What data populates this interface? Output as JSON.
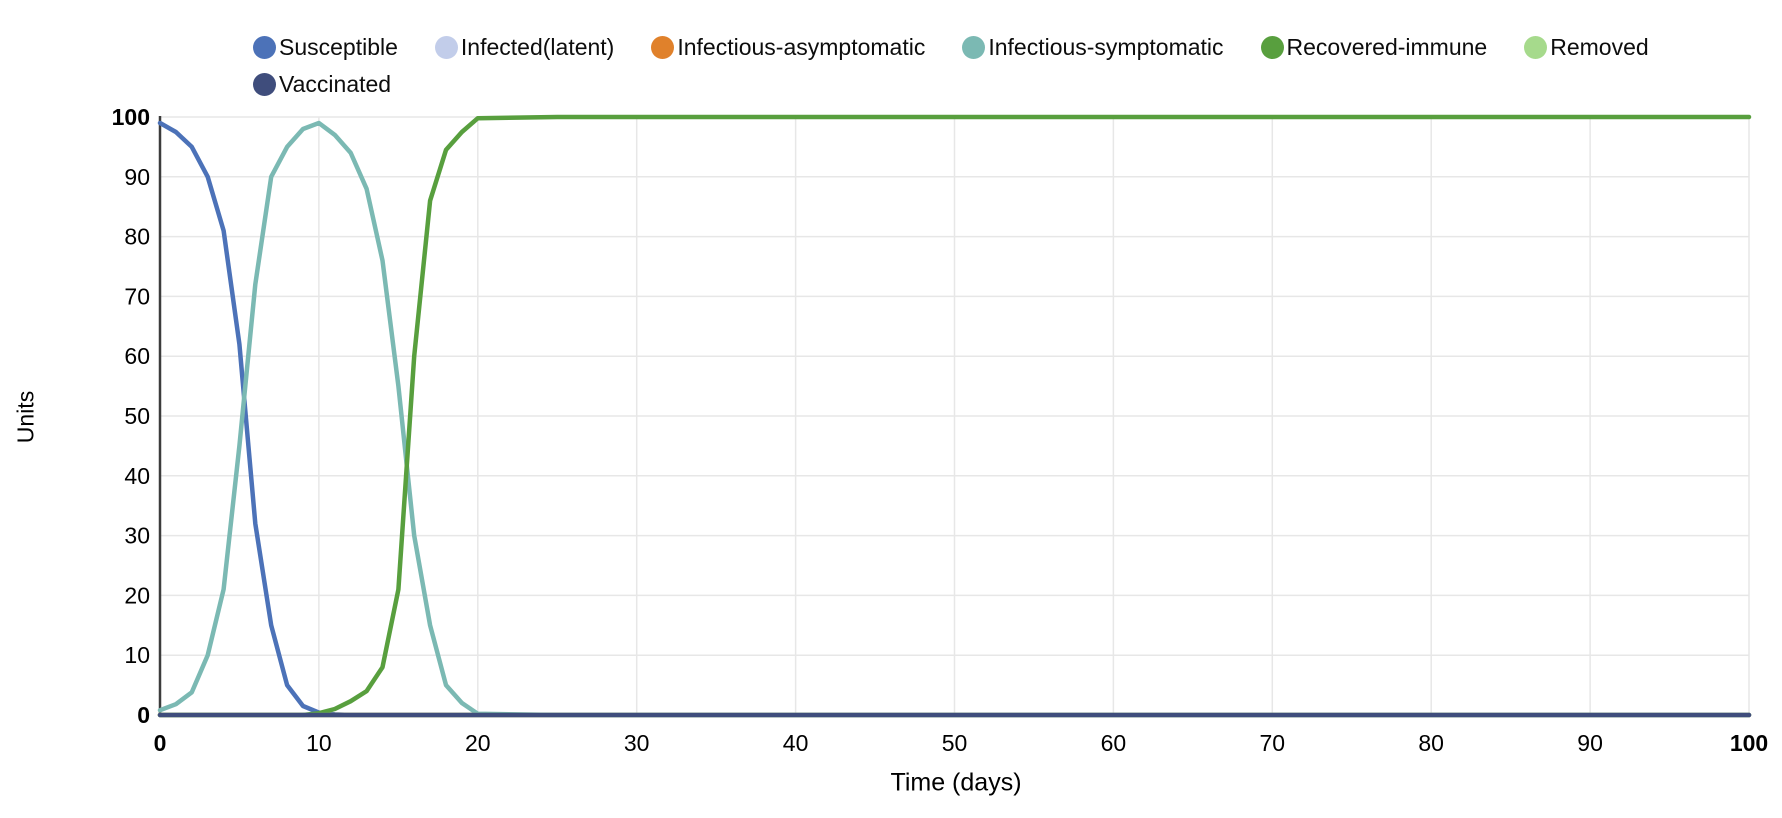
{
  "chart_data": {
    "type": "line",
    "title": "",
    "xlabel": "Time (days)",
    "ylabel": "Units",
    "xlim": [
      0,
      100
    ],
    "ylim": [
      0,
      100
    ],
    "x_ticks": [
      0,
      10,
      20,
      30,
      40,
      50,
      60,
      70,
      80,
      90,
      100
    ],
    "y_ticks": [
      0,
      10,
      20,
      30,
      40,
      50,
      60,
      70,
      80,
      90,
      100
    ],
    "grid": true,
    "legend_position": "top",
    "x": [
      0,
      1,
      2,
      3,
      4,
      5,
      6,
      7,
      8,
      9,
      10,
      11,
      12,
      13,
      14,
      15,
      16,
      17,
      18,
      19,
      20,
      25,
      30,
      40,
      50,
      60,
      70,
      80,
      90,
      100
    ],
    "series": [
      {
        "name": "Susceptible",
        "color": "#4C72B8",
        "values": [
          99,
          97.5,
          95,
          90,
          81,
          62,
          32,
          15,
          5,
          1.5,
          0.4,
          0.1,
          0,
          0,
          0,
          0,
          0,
          0,
          0,
          0,
          0,
          0,
          0,
          0,
          0,
          0,
          0,
          0,
          0,
          0
        ]
      },
      {
        "name": "Infected(latent)",
        "color": "#C2CDEA",
        "values": [
          0,
          0,
          0,
          0,
          0,
          0,
          0,
          0,
          0,
          0,
          0,
          0,
          0,
          0,
          0,
          0,
          0,
          0,
          0,
          0,
          0,
          0,
          0,
          0,
          0,
          0,
          0,
          0,
          0,
          0
        ]
      },
      {
        "name": "Infectious-asymptomatic",
        "color": "#E0812B",
        "values": [
          0,
          0,
          0,
          0,
          0,
          0,
          0,
          0,
          0,
          0,
          0,
          0,
          0,
          0,
          0,
          0,
          0,
          0,
          0,
          0,
          0,
          0,
          0,
          0,
          0,
          0,
          0,
          0,
          0,
          0
        ]
      },
      {
        "name": "Infectious-symptomatic",
        "color": "#7BB9B3",
        "values": [
          0.8,
          1.8,
          3.8,
          10,
          21,
          45,
          72,
          90,
          95,
          98,
          99,
          97,
          94,
          88,
          76,
          55,
          30,
          15,
          5,
          2,
          0.2,
          0,
          0,
          0,
          0,
          0,
          0,
          0,
          0,
          0
        ]
      },
      {
        "name": "Recovered-immune",
        "color": "#589F3E",
        "values": [
          0,
          0,
          0,
          0,
          0,
          0,
          0,
          0,
          0,
          0,
          0.3,
          1,
          2.3,
          4,
          8,
          21,
          60,
          86,
          94.5,
          97.5,
          99.8,
          100,
          100,
          100,
          100,
          100,
          100,
          100,
          100,
          100
        ]
      },
      {
        "name": "Removed",
        "color": "#A6DA8C",
        "values": [
          0,
          0,
          0,
          0,
          0,
          0,
          0,
          0,
          0,
          0,
          0,
          0,
          0,
          0,
          0,
          0,
          0,
          0,
          0,
          0,
          0,
          0,
          0,
          0,
          0,
          0,
          0,
          0,
          0,
          0
        ]
      },
      {
        "name": "Vaccinated",
        "color": "#3F4D7C",
        "values": [
          0,
          0,
          0,
          0,
          0,
          0,
          0,
          0,
          0,
          0,
          0,
          0,
          0,
          0,
          0,
          0,
          0,
          0,
          0,
          0,
          0,
          0,
          0,
          0,
          0,
          0,
          0,
          0,
          0,
          0
        ]
      }
    ]
  }
}
